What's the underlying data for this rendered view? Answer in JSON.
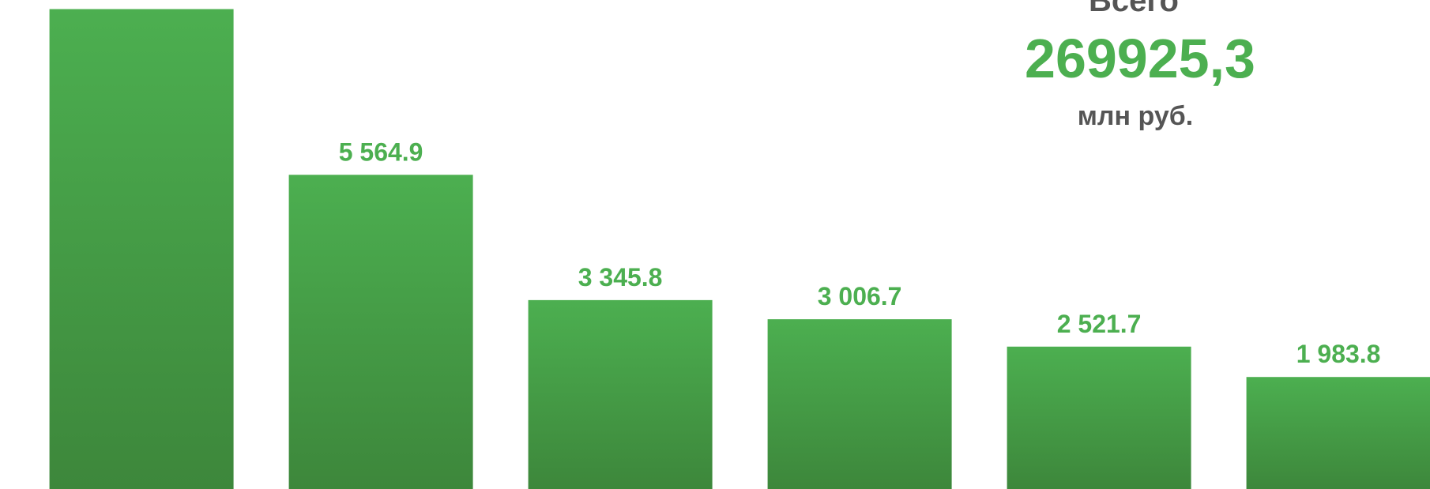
{
  "chart_data": {
    "type": "bar",
    "title": "Всего",
    "total": "269925,3",
    "unit": "млн руб.",
    "values": [
      8500,
      5564.9,
      3345.8,
      3006.7,
      2521.7,
      1983.8
    ],
    "value_labels": [
      null,
      "5 564.9",
      "3 345.8",
      "3 006.7",
      "2 521.7",
      "1 983.8"
    ],
    "color": "#4caf50",
    "ylim": [
      0,
      8661
    ]
  }
}
